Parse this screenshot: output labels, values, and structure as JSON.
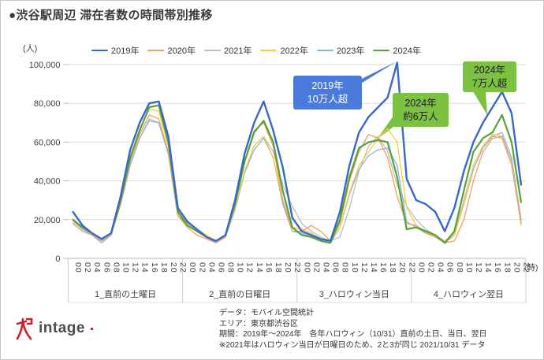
{
  "title": "●渋谷駅周辺 滞在者数の時間帯別推移",
  "y_unit": "(人)",
  "x_unit": "(時)",
  "chart_data": {
    "type": "line",
    "ylim": [
      0,
      100000
    ],
    "y_ticks": [
      0,
      20000,
      40000,
      60000,
      80000,
      100000
    ],
    "x_tick_labels": [
      "00",
      "02",
      "04",
      "06",
      "08",
      "10",
      "12",
      "14",
      "16",
      "18",
      "20",
      "22"
    ],
    "groups": [
      "1_直前の土曜日",
      "2_直前の日曜日",
      "3_ハロウィン当日",
      "4_ハロウィン翌日"
    ],
    "grid": true,
    "legend_position": "top",
    "draw_order": [
      2,
      4,
      3,
      1,
      5,
      0
    ],
    "series": [
      {
        "name": "2019年",
        "color": "#3968c8",
        "width": 2.4,
        "values": [
          24000,
          17000,
          13000,
          10000,
          13000,
          32000,
          56000,
          70000,
          80000,
          81000,
          63000,
          26000,
          19000,
          15000,
          11000,
          9000,
          12000,
          30000,
          54000,
          70000,
          81000,
          66000,
          47000,
          21000,
          14000,
          12000,
          10000,
          9000,
          24000,
          48000,
          65000,
          73000,
          78000,
          83000,
          101000,
          41000,
          30000,
          28000,
          24000,
          14000,
          26000,
          45000,
          60000,
          70000,
          78000,
          86000,
          75000,
          38000
        ]
      },
      {
        "name": "2020年",
        "color": "#f3a05f",
        "width": 1.3,
        "values": [
          18000,
          14000,
          12000,
          9000,
          12000,
          28000,
          50000,
          64000,
          74000,
          72000,
          55000,
          22000,
          16000,
          12000,
          10000,
          8000,
          11000,
          28000,
          50000,
          66000,
          70000,
          58000,
          30000,
          14000,
          14000,
          17000,
          14000,
          9000,
          18000,
          40000,
          55000,
          64000,
          62000,
          52000,
          32000,
          18000,
          17000,
          13000,
          11000,
          8000,
          9000,
          20000,
          40000,
          55000,
          62000,
          63000,
          50000,
          18000
        ]
      },
      {
        "name": "2021年",
        "color": "#bdbdbd",
        "width": 1.3,
        "values": [
          19000,
          15000,
          12000,
          9000,
          12000,
          28000,
          48000,
          62000,
          72000,
          70000,
          54000,
          22000,
          18000,
          14000,
          11000,
          9000,
          11000,
          26000,
          45000,
          58000,
          63000,
          55000,
          38000,
          27000,
          18000,
          14000,
          11000,
          9000,
          11000,
          26000,
          45000,
          58000,
          63000,
          55000,
          38000,
          27000,
          20000,
          15000,
          12000,
          9000,
          13000,
          30000,
          48000,
          58000,
          63000,
          62000,
          48000,
          18000
        ]
      },
      {
        "name": "2022年",
        "color": "#ffc93c",
        "width": 1.3,
        "values": [
          20000,
          16000,
          13000,
          10000,
          13000,
          30000,
          52000,
          67000,
          77000,
          76000,
          58000,
          25000,
          18000,
          15000,
          12000,
          9000,
          11000,
          26000,
          45000,
          58000,
          63000,
          52000,
          30000,
          16000,
          15000,
          13000,
          10000,
          9000,
          16000,
          34000,
          48000,
          55000,
          62000,
          67000,
          60000,
          26000,
          17000,
          14000,
          11000,
          9000,
          12000,
          28000,
          48000,
          58000,
          64000,
          63000,
          50000,
          17000
        ]
      },
      {
        "name": "2023年",
        "color": "#8ab6e2",
        "width": 1.3,
        "values": [
          20000,
          15000,
          12000,
          8000,
          12000,
          28000,
          48000,
          62000,
          71000,
          70000,
          54000,
          22000,
          17000,
          14000,
          11000,
          8000,
          11000,
          25000,
          44000,
          56000,
          62000,
          52000,
          28000,
          14000,
          13000,
          11000,
          9000,
          8000,
          16000,
          33000,
          46000,
          53000,
          56000,
          57000,
          48000,
          19000,
          16000,
          13000,
          11000,
          8000,
          12000,
          28000,
          46000,
          57000,
          63000,
          65000,
          52000,
          20000
        ]
      },
      {
        "name": "2024年",
        "color": "#57a33a",
        "width": 2.2,
        "values": [
          20000,
          16000,
          13000,
          10000,
          13000,
          30000,
          52000,
          66000,
          78000,
          79000,
          60000,
          24000,
          17000,
          14000,
          11000,
          9000,
          12000,
          28000,
          50000,
          65000,
          71000,
          60000,
          35000,
          16000,
          12000,
          11000,
          9000,
          8000,
          20000,
          42000,
          57000,
          60000,
          61000,
          60000,
          42000,
          15000,
          16000,
          14000,
          12000,
          8000,
          14000,
          35000,
          55000,
          62000,
          65000,
          74000,
          60000,
          29000
        ]
      }
    ]
  },
  "annotations": [
    {
      "line1": "2019年",
      "line2": "10万人超",
      "bg": "#4a7bdc",
      "fg": "#ffffff"
    },
    {
      "line1": "2024年",
      "line2": "約6万人",
      "bg": "#7cc142",
      "fg": "#1c1c1c"
    },
    {
      "line1": "2024年",
      "line2": "7万人超",
      "bg": "#7cc142",
      "fg": "#1c1c1c"
    }
  ],
  "footer": {
    "lines": [
      "データ：モバイル空間統計",
      "エリア：東京都渋谷区",
      "期間：2019年～2024年　各年ハロウィン（10/31）直前の土日、当日、翌日",
      "※2021年はハロウィン当日が日曜日のため、2と3が同じ 2021/10/31 データ"
    ]
  },
  "logo": {
    "text": "intage"
  }
}
